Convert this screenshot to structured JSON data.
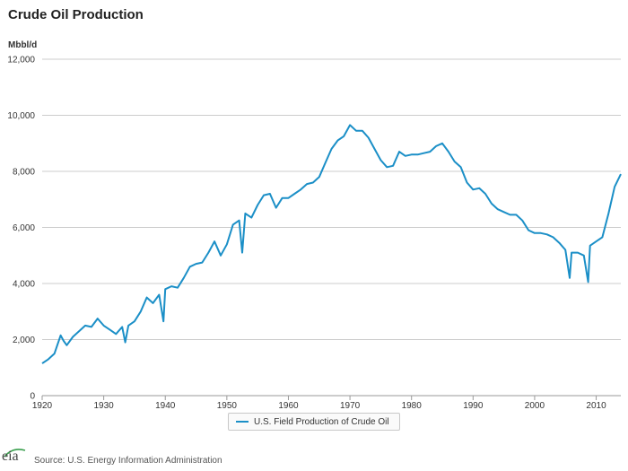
{
  "header": {
    "title": "Crude Oil Production",
    "unit": "Mbbl/d"
  },
  "legend": {
    "label": "U.S. Field Production of Crude Oil"
  },
  "footer": {
    "source": "Source: U.S. Energy Information Administration",
    "logo_text": "eia"
  },
  "colors": {
    "series": "#1b8fc7",
    "grid": "#cccccc",
    "axis": "#999999"
  },
  "chart_data": {
    "type": "line",
    "title": "Crude Oil Production",
    "ylabel": "Mbbl/d",
    "xlim": [
      1920,
      2014
    ],
    "ylim": [
      0,
      12000
    ],
    "xticks": [
      1920,
      1930,
      1940,
      1950,
      1960,
      1970,
      1980,
      1990,
      2000,
      2010
    ],
    "yticks": [
      0,
      2000,
      4000,
      6000,
      8000,
      10000,
      12000
    ],
    "ytick_labels": [
      "0",
      "2,000",
      "4,000",
      "6,000",
      "8,000",
      "10,000",
      "12,000"
    ],
    "grid": true,
    "legend_position": "bottom-center",
    "series": [
      {
        "name": "U.S. Field Production of Crude Oil",
        "x": [
          1920,
          1921,
          1922,
          1923,
          1923.5,
          1924,
          1925,
          1926,
          1927,
          1928,
          1929,
          1930,
          1931,
          1932,
          1933,
          1933.5,
          1934,
          1935,
          1936,
          1937,
          1938,
          1939,
          1939.7,
          1940,
          1941,
          1942,
          1943,
          1944,
          1945,
          1946,
          1947,
          1948,
          1949,
          1950,
          1951,
          1952,
          1952.5,
          1953,
          1954,
          1955,
          1956,
          1957,
          1958,
          1959,
          1960,
          1961,
          1962,
          1963,
          1964,
          1965,
          1966,
          1967,
          1968,
          1969,
          1970,
          1971,
          1972,
          1973,
          1974,
          1975,
          1976,
          1977,
          1978,
          1979,
          1980,
          1981,
          1982,
          1983,
          1984,
          1985,
          1986,
          1987,
          1988,
          1989,
          1990,
          1991,
          1992,
          1993,
          1994,
          1995,
          1996,
          1997,
          1998,
          1999,
          2000,
          2001,
          2002,
          2003,
          2004,
          2005,
          2005.7,
          2006,
          2007,
          2008,
          2008.7,
          2009,
          2010,
          2011,
          2012,
          2013,
          2014
        ],
        "values": [
          1150,
          1300,
          1500,
          2150,
          1950,
          1800,
          2100,
          2300,
          2500,
          2450,
          2750,
          2500,
          2350,
          2200,
          2450,
          1900,
          2500,
          2650,
          3000,
          3500,
          3300,
          3600,
          2650,
          3800,
          3900,
          3850,
          4200,
          4600,
          4700,
          4750,
          5100,
          5500,
          5000,
          5400,
          6100,
          6250,
          5100,
          6500,
          6350,
          6800,
          7150,
          7200,
          6700,
          7050,
          7050,
          7200,
          7350,
          7550,
          7600,
          7800,
          8300,
          8800,
          9100,
          9250,
          9650,
          9450,
          9450,
          9200,
          8800,
          8400,
          8150,
          8200,
          8700,
          8550,
          8600,
          8600,
          8650,
          8700,
          8900,
          9000,
          8700,
          8350,
          8150,
          7600,
          7350,
          7400,
          7200,
          6850,
          6650,
          6550,
          6450,
          6450,
          6250,
          5900,
          5800,
          5800,
          5750,
          5650,
          5450,
          5200,
          4200,
          5100,
          5100,
          5000,
          4050,
          5350,
          5500,
          5650,
          6500,
          7450,
          7900
        ]
      }
    ]
  }
}
